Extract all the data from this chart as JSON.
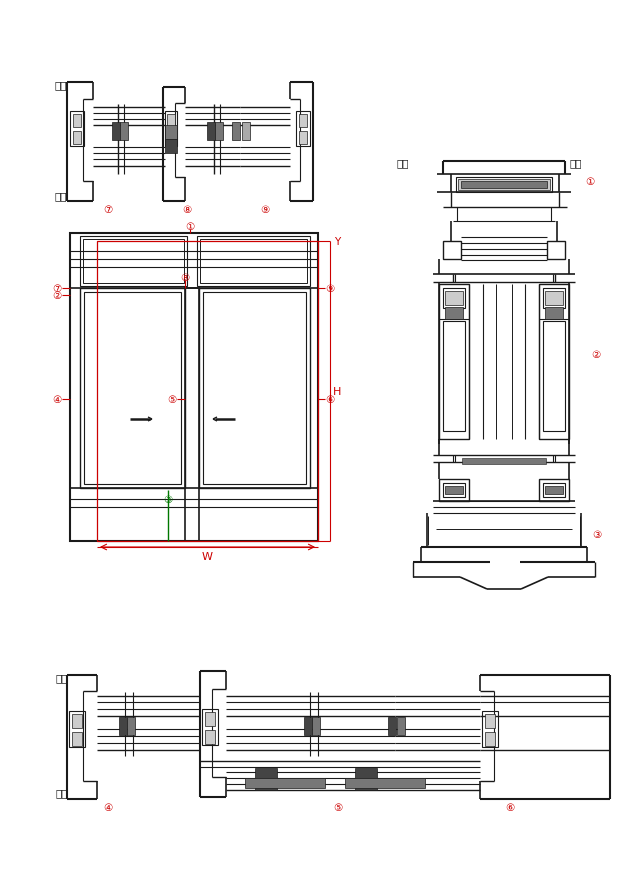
{
  "figsize": [
    6.28,
    8.79
  ],
  "dpi": 100,
  "bg_color": "#ffffff",
  "lc": "#1a1a1a",
  "rc": "#cc0000",
  "gc": "#007700",
  "gd": "#444444",
  "gm": "#777777",
  "gl": "#aaaaaa",
  "gf": "#cccccc",
  "room_outside": "室外",
  "room_inside": "室内",
  "nums": [
    "①",
    "②",
    "③",
    "④",
    "⑤",
    "⑥",
    "⑦",
    "⑧",
    "⑨"
  ],
  "W_label": "W",
  "H_label": "H",
  "Y_label": "Y"
}
